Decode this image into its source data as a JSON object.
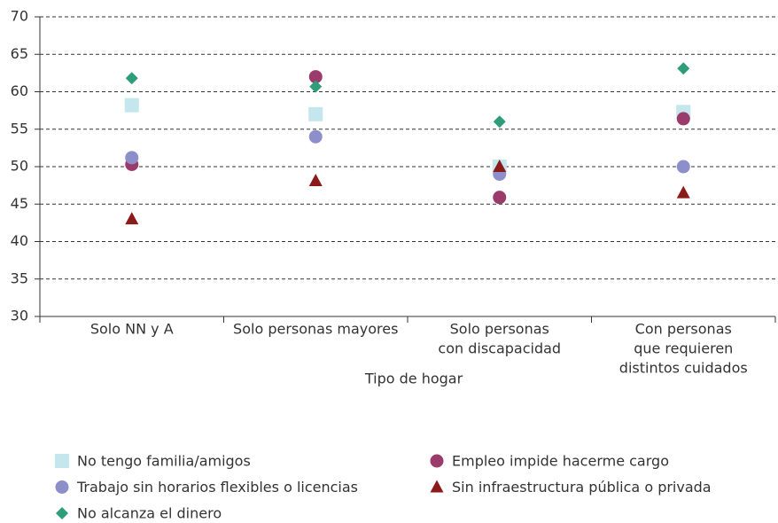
{
  "chart_data": {
    "type": "scatter",
    "x_label": "Tipo de hogar",
    "categories": [
      [
        "Solo NN y A"
      ],
      [
        "Solo personas mayores"
      ],
      [
        "Solo personas",
        "con discapacidad"
      ],
      [
        "Con personas",
        "que requieren",
        "distintos cuidados"
      ]
    ],
    "series": [
      {
        "name": "No tengo familia/amigos",
        "color": "#c4e7ee",
        "marker": "square",
        "values": [
          58.2,
          57,
          50,
          57.3
        ]
      },
      {
        "name": "Empleo impide hacerme cargo",
        "color": "#9b3b6b",
        "marker": "circle",
        "values": [
          50.3,
          62,
          45.9,
          56.4
        ]
      },
      {
        "name": "Trabajo sin horarios flexibles o licencias",
        "color": "#8c8fca",
        "marker": "circle",
        "values": [
          51.2,
          54,
          49,
          50
        ]
      },
      {
        "name": "Sin infraestructura pública o privada",
        "color": "#8b1a1a",
        "marker": "triangle",
        "values": [
          43,
          48.1,
          50,
          46.5
        ]
      },
      {
        "name": "No alcanza el dinero",
        "color": "#2e9e7a",
        "marker": "diamond",
        "values": [
          61.8,
          60.7,
          56,
          63.1
        ]
      }
    ],
    "ylim": [
      30,
      70
    ],
    "yticks": [
      30,
      35,
      40,
      45,
      50,
      55,
      60,
      65,
      70
    ],
    "grid": true,
    "legend_columns": 2
  }
}
